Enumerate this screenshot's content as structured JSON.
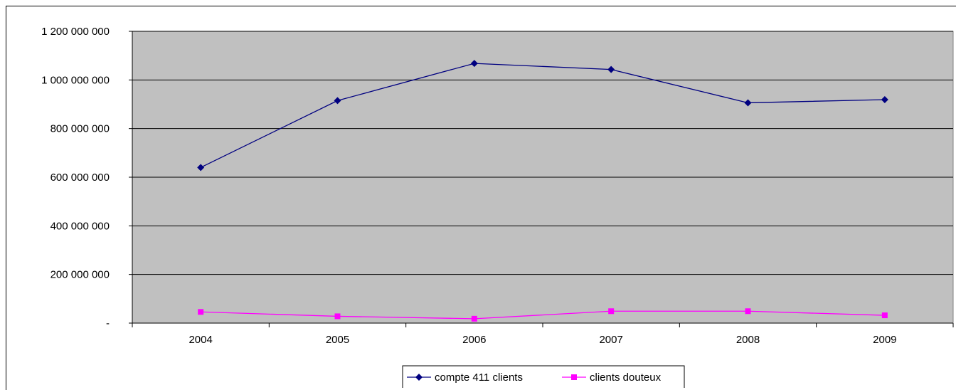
{
  "chart_data": {
    "type": "line",
    "categories": [
      "2004",
      "2005",
      "2006",
      "2007",
      "2008",
      "2009"
    ],
    "series": [
      {
        "name": "compte 411 clients",
        "values": [
          640000000,
          915000000,
          1068000000,
          1043000000,
          906000000,
          919000000
        ],
        "color": "#000080",
        "marker": "diamond"
      },
      {
        "name": "clients douteux",
        "values": [
          46000000,
          28000000,
          18000000,
          49000000,
          49000000,
          32000000
        ],
        "color": "#ff00ff",
        "marker": "square"
      }
    ],
    "ylim": [
      0,
      1200000000
    ],
    "y_ticks": [
      {
        "value": 0,
        "label": "-"
      },
      {
        "value": 200000000,
        "label": "200 000 000"
      },
      {
        "value": 400000000,
        "label": "400 000 000"
      },
      {
        "value": 600000000,
        "label": "600 000 000"
      },
      {
        "value": 800000000,
        "label": "800 000 000"
      },
      {
        "value": 1000000000,
        "label": "1 000 000 000"
      },
      {
        "value": 1200000000,
        "label": "1 200 000 000"
      }
    ],
    "grid": true,
    "plot_background": "#c0c0c0",
    "legend_position": "bottom"
  }
}
